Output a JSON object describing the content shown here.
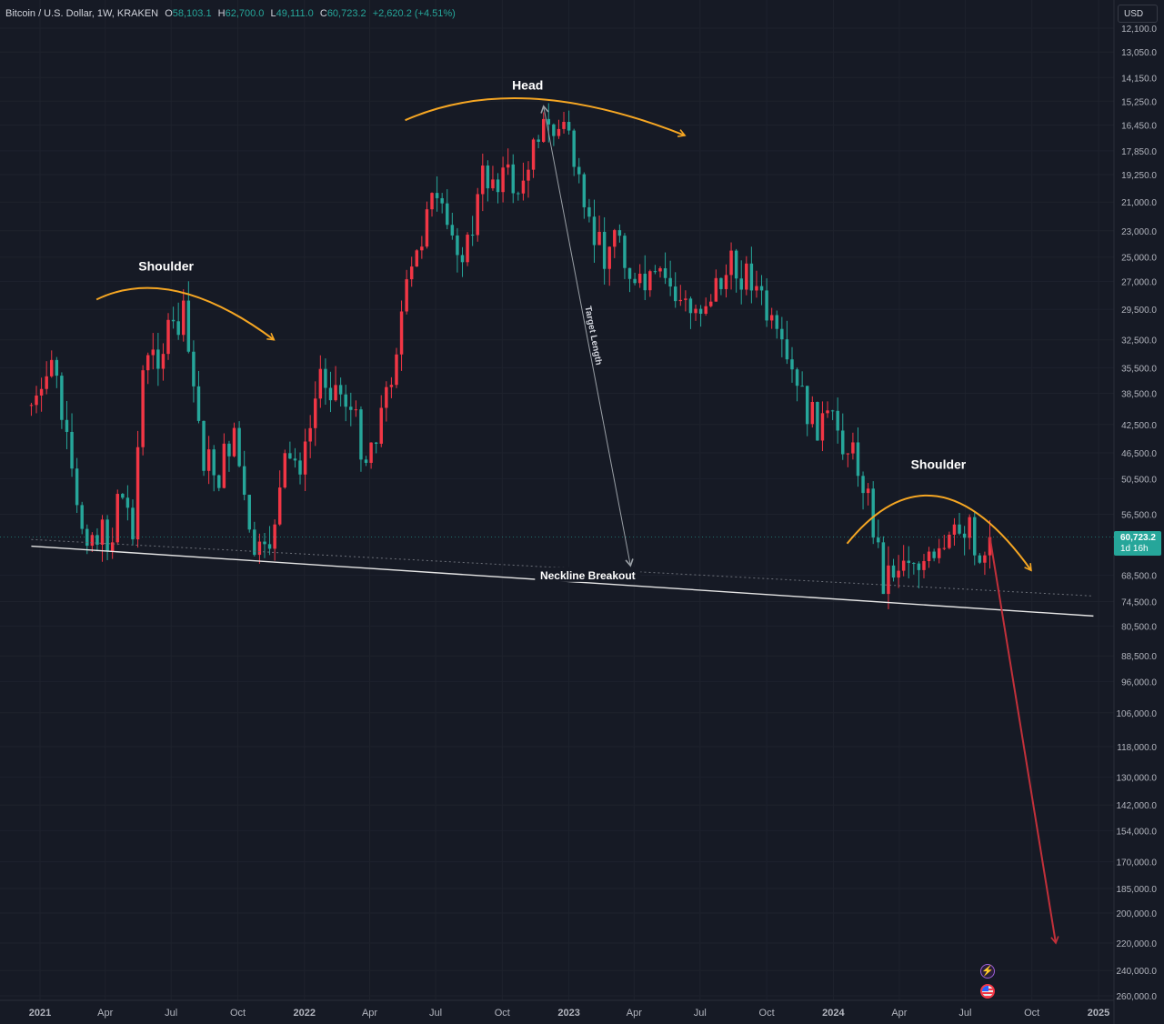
{
  "legend": {
    "symbol": "Bitcoin / U.S. Dollar, 1W, KRAKEN",
    "open_label": "O",
    "open": "58,103.1",
    "high_label": "H",
    "high": "62,700.0",
    "low_label": "L",
    "low": "49,111.0",
    "close_label": "C",
    "close": "60,723.2",
    "change": "+2,620.2 (+4.51%)"
  },
  "currency_button": "USD",
  "last_price": {
    "value": "60,723.2",
    "countdown": "1d 16h"
  },
  "colors": {
    "background": "#161a25",
    "up": "#26a69a",
    "down": "#f23645",
    "annotation": "#f5a623",
    "neckline": "#e6e6e6",
    "target_arrow": "#c2303a"
  },
  "event_icons": [
    "lightning-icon",
    "us-flag-icon"
  ],
  "chart_data": {
    "type": "candlestick",
    "scale": "log",
    "price_axis_inverted": true,
    "ylim": [
      12100,
      260000
    ],
    "y_ticks": [
      "12,100.0",
      "13,050.0",
      "14,150.0",
      "15,250.0",
      "16,450.0",
      "17,850.0",
      "19,250.0",
      "21,000.0",
      "23,000.0",
      "25,000.0",
      "27,000.0",
      "29,500.0",
      "32,500.0",
      "35,500.0",
      "38,500.0",
      "42,500.0",
      "46,500.0",
      "50,500.0",
      "56,500.0",
      "60,723.2",
      "68,500.0",
      "74,500.0",
      "80,500.0",
      "88,500.0",
      "96,000.0",
      "106,000.0",
      "118,000.0",
      "130,000.0",
      "142,000.0",
      "154,000.0",
      "170,000.0",
      "185,000.0",
      "200,000.0",
      "220,000.0",
      "240,000.0",
      "260,000.0"
    ],
    "x_ticks": [
      "2021",
      "Apr",
      "Jul",
      "Oct",
      "2022",
      "Apr",
      "Jul",
      "Oct",
      "2023",
      "Apr",
      "Jul",
      "Oct",
      "2024",
      "Apr",
      "Jul",
      "Oct",
      "2025"
    ],
    "annotations": {
      "left_shoulder": "Shoulder",
      "head": "Head",
      "right_shoulder": "Shoulder",
      "neckline": "Neckline Breakout",
      "target": "Target Length"
    },
    "close_path": [
      {
        "date": "2021-01-03",
        "close": 40000
      },
      {
        "date": "2021-01-17",
        "close": 34000
      },
      {
        "date": "2021-02-07",
        "close": 46000
      },
      {
        "date": "2021-02-21",
        "close": 57000
      },
      {
        "date": "2021-03-14",
        "close": 60000
      },
      {
        "date": "2021-04-11",
        "close": 61000
      },
      {
        "date": "2021-04-18",
        "close": 52000
      },
      {
        "date": "2021-05-09",
        "close": 58000
      },
      {
        "date": "2021-05-23",
        "close": 36000
      },
      {
        "date": "2021-06-20",
        "close": 33000
      },
      {
        "date": "2021-07-18",
        "close": 30500
      },
      {
        "date": "2021-08-15",
        "close": 47000
      },
      {
        "date": "2021-09-05",
        "close": 50000
      },
      {
        "date": "2021-09-26",
        "close": 43000
      },
      {
        "date": "2021-10-17",
        "close": 62000
      },
      {
        "date": "2021-11-07",
        "close": 66000
      },
      {
        "date": "2021-12-05",
        "close": 49000
      },
      {
        "date": "2022-01-02",
        "close": 47000
      },
      {
        "date": "2022-01-23",
        "close": 36000
      },
      {
        "date": "2022-02-27",
        "close": 39000
      },
      {
        "date": "2022-03-27",
        "close": 47000
      },
      {
        "date": "2022-04-24",
        "close": 39000
      },
      {
        "date": "2022-05-15",
        "close": 30000
      },
      {
        "date": "2022-06-12",
        "close": 23500
      },
      {
        "date": "2022-06-19",
        "close": 20500
      },
      {
        "date": "2022-07-17",
        "close": 23000
      },
      {
        "date": "2022-08-14",
        "close": 24500
      },
      {
        "date": "2022-09-04",
        "close": 19500
      },
      {
        "date": "2022-10-02",
        "close": 19200
      },
      {
        "date": "2022-10-30",
        "close": 20500
      },
      {
        "date": "2022-11-13",
        "close": 16500
      },
      {
        "date": "2022-12-11",
        "close": 16800
      },
      {
        "date": "2023-01-01",
        "close": 16600
      },
      {
        "date": "2023-01-22",
        "close": 22700
      },
      {
        "date": "2023-02-19",
        "close": 24500
      },
      {
        "date": "2023-03-12",
        "close": 23000
      },
      {
        "date": "2023-04-02",
        "close": 28000
      },
      {
        "date": "2023-05-14",
        "close": 27000
      },
      {
        "date": "2023-06-18",
        "close": 30000
      },
      {
        "date": "2023-08-13",
        "close": 26000
      },
      {
        "date": "2023-09-10",
        "close": 26500
      },
      {
        "date": "2023-10-22",
        "close": 34500
      },
      {
        "date": "2023-12-03",
        "close": 42000
      },
      {
        "date": "2024-01-07",
        "close": 43000
      },
      {
        "date": "2024-02-11",
        "close": 50000
      },
      {
        "date": "2024-03-10",
        "close": 69000
      },
      {
        "date": "2024-04-14",
        "close": 64000
      },
      {
        "date": "2024-05-19",
        "close": 67000
      },
      {
        "date": "2024-06-23",
        "close": 60000
      },
      {
        "date": "2024-07-07",
        "close": 57000
      },
      {
        "date": "2024-07-21",
        "close": 66000
      },
      {
        "date": "2024-08-04",
        "close": 60723.2
      }
    ],
    "projection_end": {
      "date": "2024-11-03",
      "price": 220000
    }
  }
}
